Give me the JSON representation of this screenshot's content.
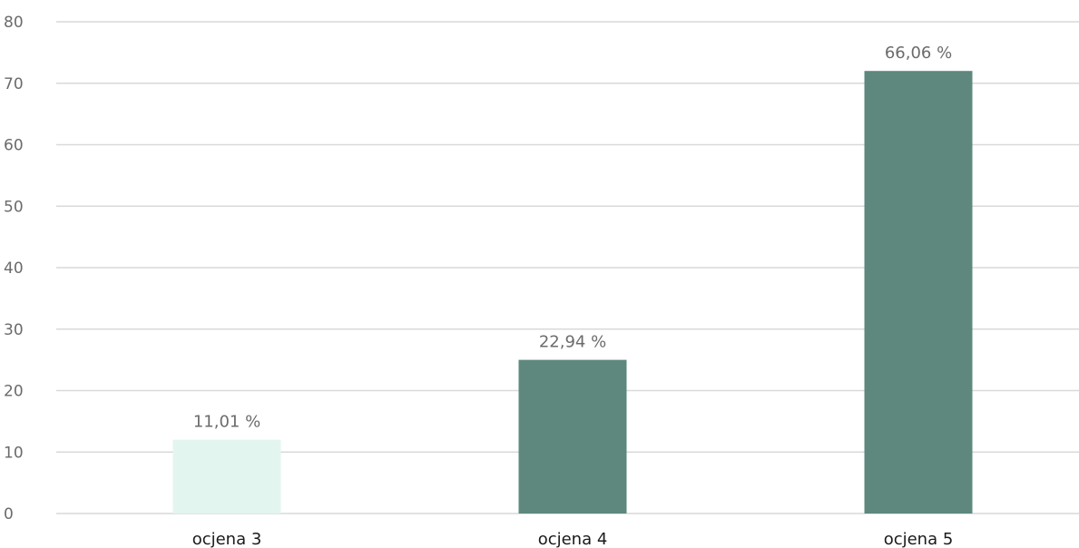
{
  "chart_data": {
    "type": "bar",
    "title": "",
    "xlabel": "",
    "ylabel": "",
    "categories": [
      "ocjena 3",
      "ocjena 4",
      "ocjena 5"
    ],
    "values": [
      12,
      25,
      72
    ],
    "data_labels": [
      "11,01 %",
      "22,94 %",
      "66,06 %"
    ],
    "bar_colors": [
      "#e3f5ef",
      "#5e887e",
      "#5e887e"
    ],
    "ylim": [
      0,
      80
    ],
    "yticks": [
      0,
      10,
      20,
      30,
      40,
      50,
      60,
      70,
      80
    ],
    "grid": true,
    "legend": "none"
  }
}
